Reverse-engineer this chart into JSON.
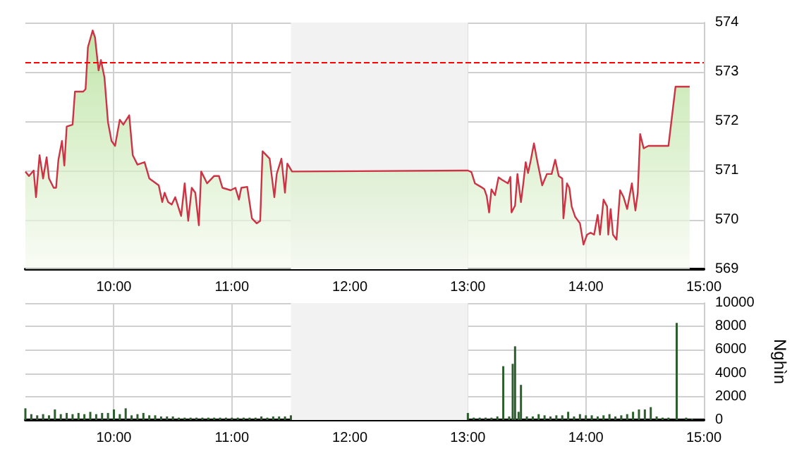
{
  "chart_data": [
    {
      "type": "area",
      "xlim": [
        9.25,
        15
      ],
      "xticks": [
        {
          "value": 10,
          "label": "10:00"
        },
        {
          "value": 11,
          "label": "11:00"
        },
        {
          "value": 12,
          "label": "12:00"
        },
        {
          "value": 13,
          "label": "13:00"
        },
        {
          "value": 14,
          "label": "14:00"
        },
        {
          "value": 15,
          "label": "15:00"
        }
      ],
      "ylim": [
        569,
        574
      ],
      "yticks": [
        569,
        570,
        571,
        572,
        573,
        574
      ],
      "grid": true,
      "series": [
        {
          "color": "#cc3344",
          "x": [
            9.25,
            9.28,
            9.32,
            9.34,
            9.37,
            9.4,
            9.43,
            9.45,
            9.49,
            9.51,
            9.53,
            9.56,
            9.58,
            9.6,
            9.65,
            9.67,
            9.74,
            9.76,
            9.78,
            9.82,
            9.84,
            9.87,
            9.89,
            9.92,
            9.95,
            9.98,
            10.01,
            10.05,
            10.08,
            10.13,
            10.16,
            10.2,
            10.26,
            10.3,
            10.38,
            10.41,
            10.43,
            10.46,
            10.49,
            10.52,
            10.57,
            10.6,
            10.63,
            10.66,
            10.69,
            10.72,
            10.74,
            10.79,
            10.85,
            10.89,
            10.92,
            10.99,
            11.03,
            11.06,
            11.08,
            11.13,
            11.17,
            11.21,
            11.24,
            11.26,
            11.32,
            11.36,
            11.38,
            11.42,
            11.45,
            11.47,
            11.51,
            13.0,
            13.03,
            13.06,
            13.11,
            13.14,
            13.16,
            13.18,
            13.2,
            13.23,
            13.26,
            13.29,
            13.34,
            13.36,
            13.37,
            13.4,
            13.42,
            13.45,
            13.47,
            13.49,
            13.51,
            13.53,
            13.56,
            13.59,
            13.63,
            13.67,
            13.71,
            13.74,
            13.77,
            13.8,
            13.81,
            13.84,
            13.86,
            13.88,
            13.91,
            13.95,
            13.98,
            14.01,
            14.04,
            14.07,
            14.1,
            14.12,
            14.15,
            14.18,
            14.19,
            14.21,
            14.23,
            14.26,
            14.29,
            14.32,
            14.35,
            14.39,
            14.42,
            14.44,
            14.46,
            14.49,
            14.53,
            14.7,
            14.76,
            14.88
          ],
          "values": [
            570.98,
            570.89,
            571.0,
            570.46,
            571.31,
            570.84,
            571.27,
            570.84,
            570.65,
            570.65,
            571.22,
            571.6,
            571.1,
            571.89,
            571.93,
            572.6,
            572.6,
            572.65,
            573.5,
            573.84,
            573.7,
            573.03,
            573.24,
            572.89,
            571.98,
            571.6,
            571.5,
            572.03,
            571.93,
            572.12,
            571.31,
            571.12,
            571.17,
            570.84,
            570.7,
            570.36,
            570.55,
            570.36,
            570.31,
            570.46,
            570.08,
            570.74,
            569.98,
            570.65,
            570.55,
            569.89,
            570.98,
            570.74,
            570.89,
            570.89,
            570.65,
            570.6,
            570.65,
            570.41,
            570.65,
            570.67,
            570.03,
            569.93,
            569.98,
            571.39,
            571.24,
            570.46,
            570.93,
            571.24,
            570.55,
            571.14,
            570.98,
            571.0,
            570.97,
            570.74,
            570.67,
            570.62,
            570.48,
            570.15,
            570.62,
            570.5,
            570.86,
            570.81,
            570.74,
            570.87,
            570.15,
            570.29,
            570.93,
            570.36,
            570.74,
            571.17,
            570.95,
            571.17,
            571.55,
            571.17,
            570.7,
            570.93,
            570.93,
            571.22,
            570.89,
            570.84,
            570.03,
            570.74,
            570.65,
            570.27,
            570.06,
            569.93,
            569.5,
            569.7,
            569.74,
            569.7,
            570.1,
            569.7,
            570.41,
            570.27,
            569.7,
            570.22,
            569.7,
            569.6,
            570.6,
            570.46,
            570.22,
            570.74,
            570.19,
            570.55,
            571.74,
            571.45,
            571.5,
            571.5,
            572.7,
            572.7
          ]
        }
      ],
      "ref_lines": [
        {
          "axis": "y",
          "value": 573.2,
          "color": "#ff0000",
          "line_style": "dashed"
        }
      ],
      "bands": [
        {
          "axis": "x",
          "from": 11.5,
          "to": 13,
          "color": "#f2f2f2"
        }
      ]
    },
    {
      "type": "bar",
      "ylabel": "Nghìn",
      "xlim": [
        9.25,
        15
      ],
      "xticks": [
        {
          "value": 10,
          "label": "10:00"
        },
        {
          "value": 11,
          "label": "11:00"
        },
        {
          "value": 12,
          "label": "12:00"
        },
        {
          "value": 13,
          "label": "13:00"
        },
        {
          "value": 14,
          "label": "14:00"
        },
        {
          "value": 15,
          "label": "15:00"
        }
      ],
      "ylim": [
        0,
        10000
      ],
      "yticks": [
        0,
        2000,
        4000,
        6000,
        8000,
        10000
      ],
      "grid": true,
      "series": [
        {
          "color": "#2d5e2d",
          "x": [
            9.25,
            9.3,
            9.35,
            9.4,
            9.45,
            9.5,
            9.55,
            9.6,
            9.65,
            9.7,
            9.75,
            9.8,
            9.85,
            9.9,
            9.95,
            10.0,
            10.05,
            10.1,
            10.15,
            10.2,
            10.25,
            10.3,
            10.35,
            10.4,
            10.45,
            10.5,
            10.55,
            10.6,
            10.65,
            10.7,
            10.75,
            10.8,
            10.85,
            10.9,
            10.95,
            11.0,
            11.05,
            11.1,
            11.15,
            11.2,
            11.25,
            11.3,
            11.35,
            11.4,
            11.45,
            11.5,
            13.0,
            13.05,
            13.1,
            13.15,
            13.2,
            13.25,
            13.3,
            13.35,
            13.38,
            13.4,
            13.43,
            13.45,
            13.5,
            13.55,
            13.6,
            13.65,
            13.7,
            13.75,
            13.8,
            13.85,
            13.9,
            13.95,
            14.0,
            14.05,
            14.1,
            14.15,
            14.2,
            14.25,
            14.3,
            14.35,
            14.4,
            14.45,
            14.5,
            14.55,
            14.6,
            14.65,
            14.7,
            14.77,
            14.85,
            14.9
          ],
          "values": [
            1000,
            500,
            400,
            500,
            400,
            900,
            500,
            600,
            500,
            600,
            500,
            700,
            500,
            600,
            600,
            900,
            500,
            1000,
            400,
            500,
            600,
            400,
            400,
            300,
            300,
            300,
            200,
            200,
            200,
            200,
            200,
            200,
            200,
            200,
            200,
            200,
            200,
            200,
            200,
            200,
            300,
            200,
            300,
            300,
            300,
            400,
            600,
            200,
            200,
            200,
            200,
            300,
            4600,
            300,
            4800,
            6300,
            700,
            3000,
            300,
            300,
            500,
            400,
            300,
            400,
            400,
            700,
            300,
            500,
            400,
            400,
            300,
            400,
            500,
            300,
            400,
            500,
            700,
            900,
            900,
            1100,
            300,
            200,
            200,
            8300,
            200,
            100
          ]
        }
      ],
      "bands": [
        {
          "axis": "x",
          "from": 11.5,
          "to": 13,
          "color": "#f2f2f2"
        }
      ]
    }
  ]
}
